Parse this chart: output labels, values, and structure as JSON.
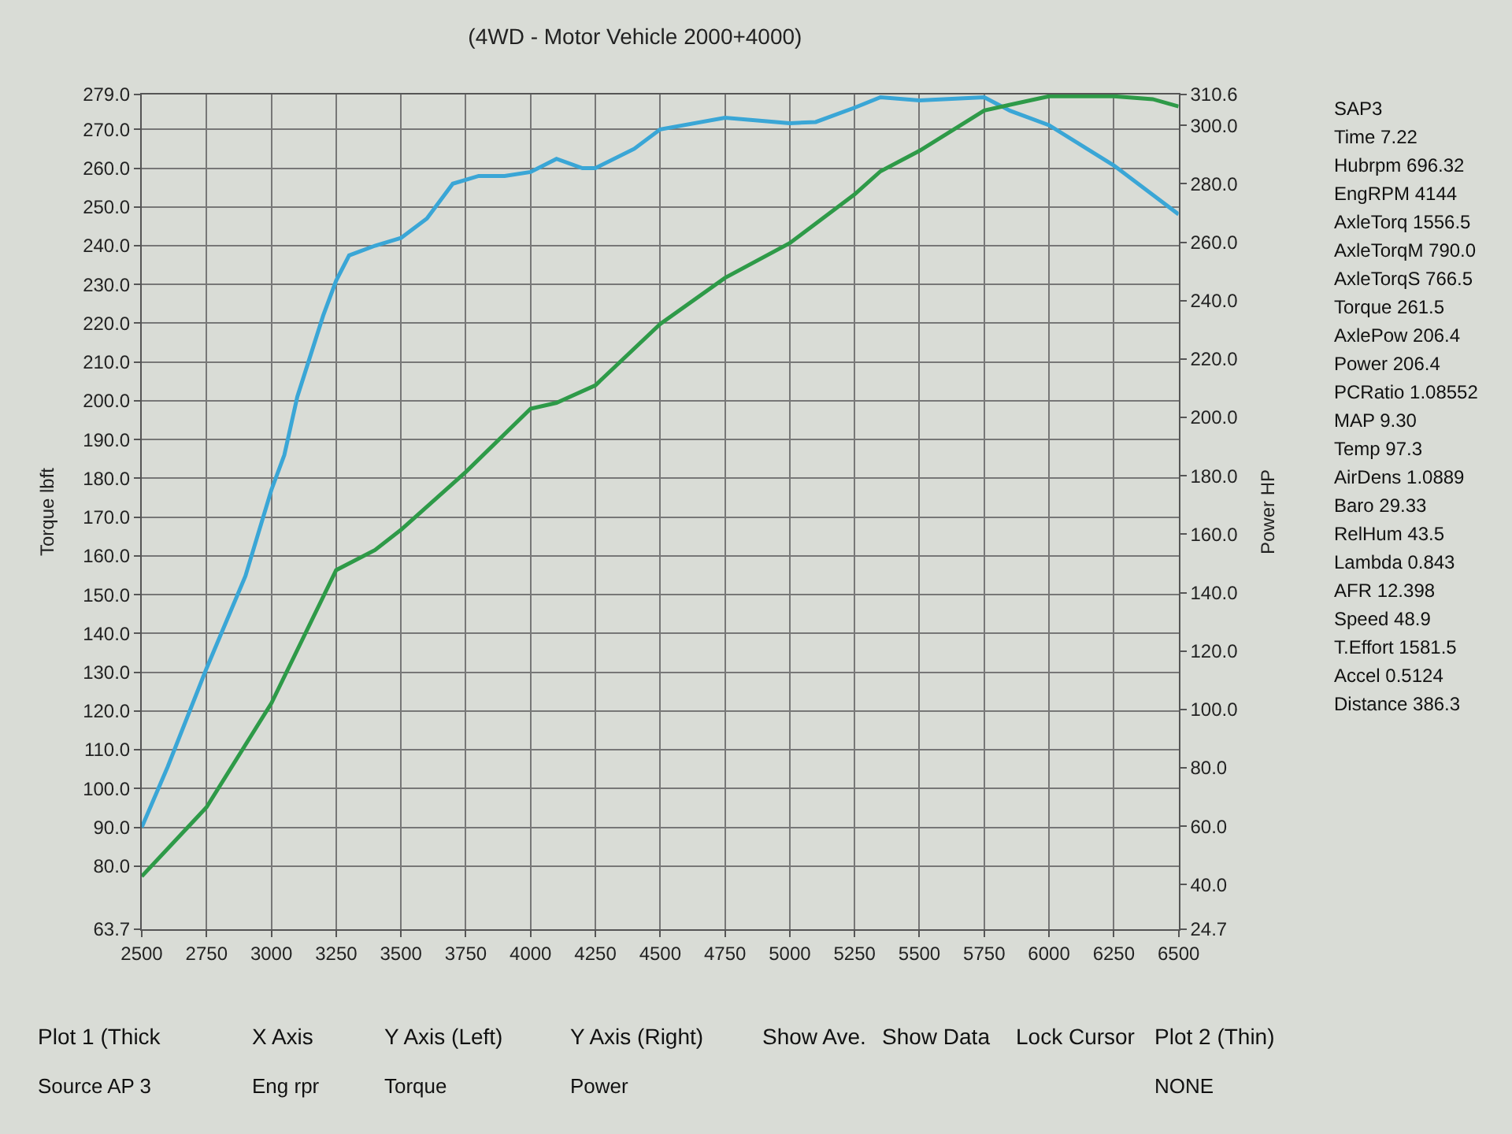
{
  "chart_data": {
    "type": "line",
    "title": "(4WD - Motor Vehicle 2000+4000)",
    "ylabel": "Torque lbft",
    "y2label": "Power HP",
    "xlim": [
      2500,
      6500
    ],
    "xticks": [
      2500,
      2750,
      3000,
      3250,
      3500,
      3750,
      4000,
      4250,
      4500,
      4750,
      5000,
      5250,
      5500,
      5750,
      6000,
      6250,
      6500
    ],
    "ylim": [
      63.7,
      279.0
    ],
    "yticks": [
      {
        "value": 63.7,
        "label": "63.7"
      },
      {
        "value": 80,
        "label": "80.0"
      },
      {
        "value": 90,
        "label": "90.0"
      },
      {
        "value": 100,
        "label": "100.0"
      },
      {
        "value": 110,
        "label": "110.0"
      },
      {
        "value": 120,
        "label": "120.0"
      },
      {
        "value": 130,
        "label": "130.0"
      },
      {
        "value": 140,
        "label": "140.0"
      },
      {
        "value": 150,
        "label": "150.0"
      },
      {
        "value": 160,
        "label": "160.0"
      },
      {
        "value": 170,
        "label": "170.0"
      },
      {
        "value": 180,
        "label": "180.0"
      },
      {
        "value": 190,
        "label": "190.0"
      },
      {
        "value": 200,
        "label": "200.0"
      },
      {
        "value": 210,
        "label": "210.0"
      },
      {
        "value": 220,
        "label": "220.0"
      },
      {
        "value": 230,
        "label": "230.0"
      },
      {
        "value": 240,
        "label": "240.0"
      },
      {
        "value": 250,
        "label": "250.0"
      },
      {
        "value": 260,
        "label": "260.0"
      },
      {
        "value": 270,
        "label": "270.0"
      },
      {
        "value": 279,
        "label": "279.0"
      }
    ],
    "y2lim": [
      24.7,
      310.6
    ],
    "y2ticks": [
      {
        "value": 24.7,
        "label": "24.7"
      },
      {
        "value": 40,
        "label": "40.0"
      },
      {
        "value": 60,
        "label": "60.0"
      },
      {
        "value": 80,
        "label": "80.0"
      },
      {
        "value": 100,
        "label": "100.0"
      },
      {
        "value": 120,
        "label": "120.0"
      },
      {
        "value": 140,
        "label": "140.0"
      },
      {
        "value": 160,
        "label": "160.0"
      },
      {
        "value": 180,
        "label": "180.0"
      },
      {
        "value": 200,
        "label": "200.0"
      },
      {
        "value": 220,
        "label": "220.0"
      },
      {
        "value": 240,
        "label": "240.0"
      },
      {
        "value": 260,
        "label": "260.0"
      },
      {
        "value": 280,
        "label": "280.0"
      },
      {
        "value": 300,
        "label": "300.0"
      },
      {
        "value": 310.6,
        "label": "310.6"
      }
    ],
    "grid": true,
    "marker": "none",
    "line_style": "solid",
    "series": [
      {
        "color": "#3aa6d6",
        "x": [
          2500,
          2600,
          2750,
          2900,
          3000,
          3050,
          3100,
          3200,
          3250,
          3300,
          3400,
          3500,
          3600,
          3700,
          3800,
          3900,
          4000,
          4100,
          4200,
          4250,
          4400,
          4500,
          4750,
          5000,
          5100,
          5250,
          5350,
          5500,
          5750,
          5850,
          6000,
          6250,
          6500
        ],
        "values": [
          90,
          105.6,
          131,
          154.8,
          177,
          186,
          201,
          222,
          231,
          237.5,
          240,
          242,
          247,
          256,
          258,
          258,
          259,
          262.4,
          260,
          260,
          265,
          270,
          273,
          271.6,
          271.9,
          275.6,
          278.3,
          277.5,
          278.3,
          274.8,
          271.1,
          260.7,
          248.1
        ]
      },
      {
        "color": "#2e9a48",
        "axis": "y2",
        "x": [
          2500,
          2750,
          3000,
          3250,
          3400,
          3500,
          3750,
          4000,
          4100,
          4250,
          4500,
          4750,
          5000,
          5250,
          5350,
          5500,
          5750,
          5850,
          6000,
          6250,
          6400,
          6500
        ],
        "values": [
          42.8,
          66.5,
          102.1,
          147.7,
          154.6,
          161.5,
          181.3,
          203,
          205,
          211,
          232,
          247.8,
          259.7,
          276.4,
          284.3,
          291.3,
          305.1,
          307.1,
          310,
          310,
          309,
          306.5
        ]
      }
    ],
    "annotations": [
      "SAP3",
      "Time 7.22",
      "Hubrpm 696.32",
      "EngRPM 4144",
      "AxleTorq 1556.5",
      "AxleTorqM 790.0",
      "AxleTorqS 766.5",
      "Torque 261.5",
      "AxlePow 206.4",
      "Power 206.4",
      "PCRatio 1.08552",
      "MAP 9.30",
      "Temp 97.3",
      "AirDens 1.0889",
      "Baro 29.33",
      "RelHum 43.5",
      "Lambda 0.843",
      "AFR 12.398",
      "Speed 48.9",
      "T.Effort 1581.5",
      "Accel 0.5124",
      "Distance 386.3",
      "Plot 1 (Thick",
      "X Axis",
      "Y Axis (Left)",
      "Y Axis (Right)",
      "Show Ave.",
      "Show Data",
      "Lock Cursor",
      "Plot 2 (Thin)",
      "Source AP 3",
      "Eng rpr",
      "Torque",
      "Power",
      "NONE"
    ]
  }
}
